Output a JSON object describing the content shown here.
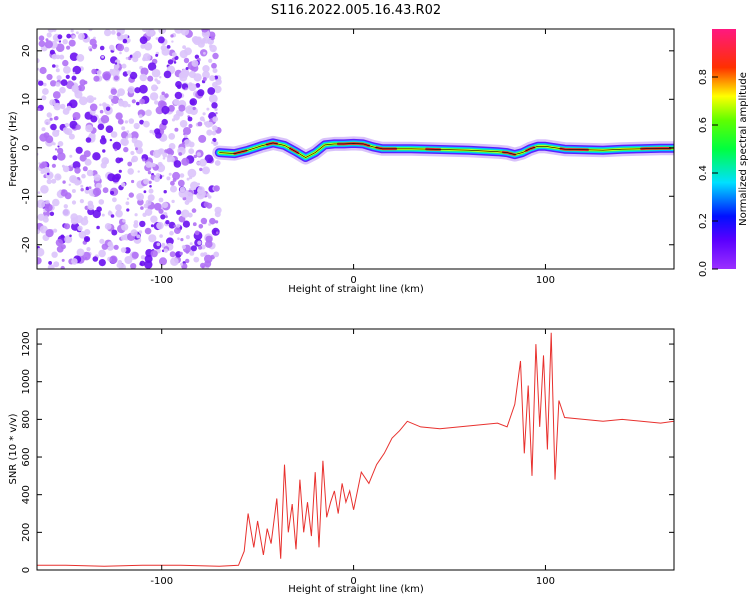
{
  "figure": {
    "title": "S116.2022.005.16.43.R02"
  },
  "colors": {
    "snr_line": "#e8312e",
    "spectrogram_noise": "#8a2be2",
    "ridge_peak": "#e8312e",
    "frame": "#000000"
  },
  "colorbar": {
    "label": "Normalized spectral amplitude",
    "ticks": [
      "0.0",
      "0.2",
      "0.4",
      "0.6",
      "0.8"
    ],
    "tick_values": [
      0.0,
      0.2,
      0.4,
      0.6,
      0.8
    ],
    "range": [
      0,
      1
    ],
    "colormap": "rainbow (purple → blue → cyan → green → yellow → red → pink)"
  },
  "chart_data": [
    {
      "type": "heatmap",
      "xlabel": "Height of straight line (km)",
      "ylabel": "Frequency (Hz)",
      "xlim": [
        -165,
        167
      ],
      "ylim": [
        -25,
        24.5
      ],
      "xticks": [
        -100,
        0,
        100
      ],
      "yticks": [
        -20,
        -10,
        0,
        10,
        20
      ],
      "noise_region_x": [
        -165,
        -70
      ],
      "ridge": {
        "x": [
          -70,
          -62,
          -55,
          -48,
          -42,
          -36,
          -30,
          -25,
          -20,
          -15,
          -10,
          -5,
          0,
          5,
          10,
          15,
          20,
          30,
          40,
          50,
          60,
          70,
          75,
          80,
          84,
          88,
          92,
          96,
          100,
          110,
          120,
          130,
          140,
          150,
          160,
          167
        ],
        "y": [
          -1.0,
          -1.2,
          -0.5,
          0.4,
          1.0,
          0.5,
          -0.8,
          -2.0,
          -1.0,
          0.6,
          0.8,
          0.8,
          0.9,
          0.8,
          0.2,
          -0.2,
          -0.2,
          -0.2,
          -0.3,
          -0.4,
          -0.5,
          -0.7,
          -0.8,
          -1.0,
          -1.4,
          -1.0,
          -0.2,
          0.3,
          0.3,
          -0.3,
          -0.4,
          -0.5,
          -0.3,
          -0.2,
          -0.1,
          -0.1
        ]
      },
      "peak_segments_x": [
        [
          -62,
          -56
        ],
        [
          -45,
          -40
        ],
        [
          -33,
          -29
        ],
        [
          -8,
          8
        ],
        [
          12,
          22
        ],
        [
          38,
          45
        ],
        [
          78,
          84
        ],
        [
          90,
          94
        ],
        [
          108,
          122
        ],
        [
          150,
          165
        ]
      ]
    },
    {
      "type": "line",
      "xlabel": "Height of straight line (km)",
      "ylabel": "SNR (10 * v/v)",
      "xlim": [
        -165,
        167
      ],
      "ylim": [
        0,
        1280
      ],
      "xticks": [
        -100,
        0,
        100
      ],
      "yticks": [
        0,
        200,
        400,
        600,
        800,
        1000,
        1200
      ],
      "series": [
        {
          "x": [
            -165,
            -150,
            -130,
            -110,
            -90,
            -70,
            -60,
            -57,
            -55,
            -52,
            -50,
            -47,
            -45,
            -43,
            -40,
            -38,
            -36,
            -34,
            -32,
            -30,
            -28,
            -26,
            -24,
            -22,
            -20,
            -18,
            -16,
            -14,
            -12,
            -10,
            -8,
            -6,
            -4,
            -2,
            0,
            4,
            8,
            12,
            16,
            20,
            24,
            28,
            35,
            45,
            55,
            65,
            75,
            80,
            84,
            87,
            89,
            91,
            93,
            95,
            97,
            99,
            101,
            103,
            105,
            107,
            110,
            120,
            130,
            140,
            150,
            160,
            167
          ],
          "y": [
            25,
            25,
            20,
            25,
            25,
            20,
            25,
            100,
            300,
            120,
            260,
            80,
            220,
            140,
            380,
            60,
            560,
            200,
            350,
            110,
            480,
            200,
            360,
            180,
            520,
            120,
            580,
            280,
            360,
            420,
            300,
            460,
            360,
            420,
            320,
            520,
            460,
            560,
            620,
            700,
            740,
            790,
            760,
            750,
            760,
            770,
            780,
            760,
            880,
            1110,
            620,
            980,
            500,
            1200,
            760,
            1140,
            640,
            1260,
            480,
            900,
            810,
            800,
            790,
            800,
            790,
            780,
            790
          ]
        }
      ]
    }
  ]
}
